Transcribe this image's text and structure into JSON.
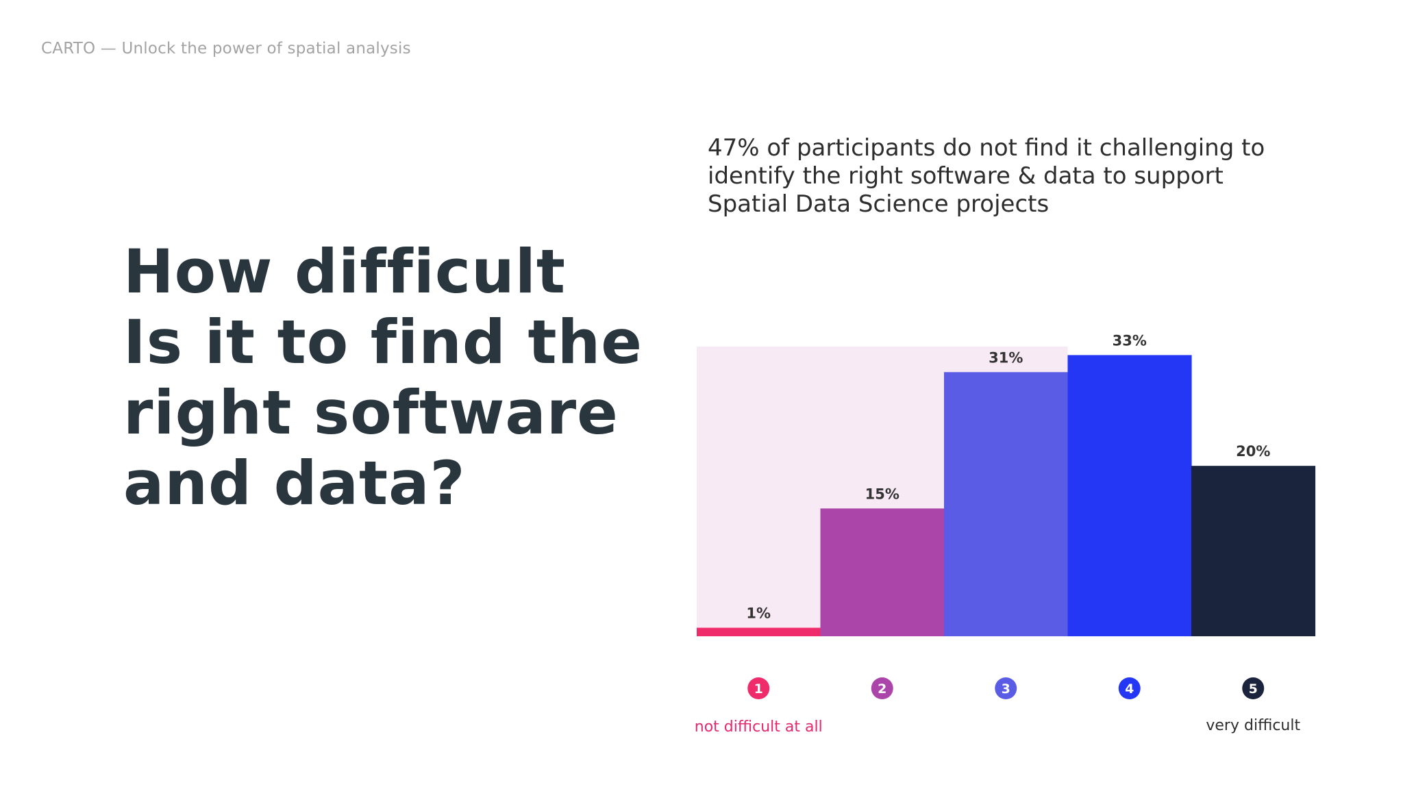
{
  "header": {
    "text": "CARTO — Unlock the power of spatial analysis"
  },
  "headline": {
    "lines": [
      "How difficult",
      "Is it to find the",
      "right software",
      "and data?"
    ]
  },
  "subtitle": {
    "lines": [
      "47% of participants do not find it challenging to",
      "identify the right software & data to support",
      "Spatial Data Science projects"
    ]
  },
  "colors": {
    "highlight": "#f8eaf4",
    "bar1": "#ef2b6b",
    "bar2": "#ab45aa",
    "bar3": "#5b5ce6",
    "bar4": "#2437f5",
    "bar5": "#1b243d",
    "low_label": "#e6286e",
    "high_label": "#2d2d2d"
  },
  "chart_data": {
    "type": "bar",
    "categories": [
      "1",
      "2",
      "3",
      "4",
      "5"
    ],
    "values": [
      1,
      15,
      31,
      33,
      20
    ],
    "value_labels": [
      "1%",
      "15%",
      "31%",
      "33%",
      "20%"
    ],
    "ylim": [
      0,
      34
    ],
    "highlight_categories": [
      "1",
      "2",
      "3"
    ],
    "scale_low_label": "not difficult at all",
    "scale_high_label": "very difficult"
  }
}
